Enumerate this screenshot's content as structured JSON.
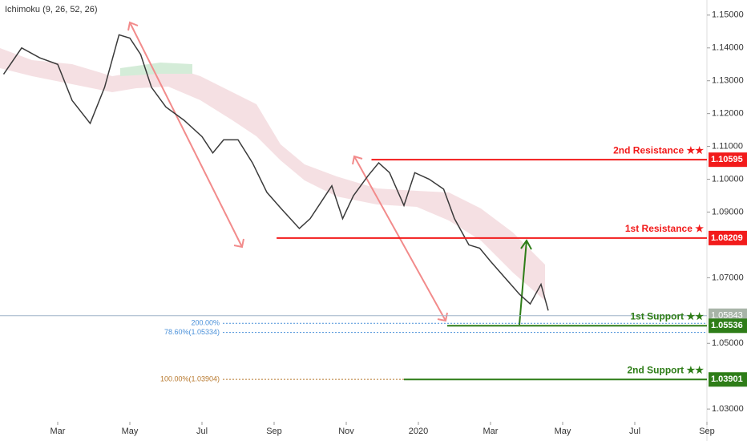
{
  "chart_data": {
    "type": "line",
    "indicator": "Ichimoku (9, 26, 52, 26)",
    "x": [
      0.5,
      1.0,
      1.5,
      2.0,
      2.4,
      2.9,
      3.3,
      3.7,
      4.0,
      4.3,
      4.6,
      5.0,
      5.5,
      6.0,
      6.3,
      6.6,
      7.0,
      7.4,
      7.8,
      8.2,
      8.7,
      9.0,
      9.3,
      9.6,
      9.9,
      10.2,
      10.6,
      10.9,
      11.2,
      11.6,
      11.9,
      12.3,
      12.7,
      13.0,
      13.4,
      13.7,
      14.0,
      14.4,
      14.8,
      15.1,
      15.4,
      15.6
    ],
    "series": [
      {
        "color": "#3a3a3a",
        "values": [
          1.132,
          1.14,
          1.137,
          1.135,
          1.124,
          1.117,
          1.128,
          1.144,
          1.143,
          1.138,
          1.128,
          1.122,
          1.118,
          1.113,
          1.108,
          1.112,
          1.112,
          1.105,
          1.096,
          1.091,
          1.085,
          1.088,
          1.093,
          1.098,
          1.088,
          1.095,
          1.101,
          1.105,
          1.102,
          1.092,
          1.102,
          1.1,
          1.097,
          1.088,
          1.08,
          1.079,
          1.075,
          1.07,
          1.065,
          1.062,
          1.068,
          1.06
        ]
      }
    ],
    "xlim": [
      0.4,
      20
    ],
    "xticks": [
      {
        "value": 2,
        "label": "Mar"
      },
      {
        "value": 4,
        "label": "May"
      },
      {
        "value": 6,
        "label": "Jul"
      },
      {
        "value": 8,
        "label": "Sep"
      },
      {
        "value": 10,
        "label": "Nov"
      },
      {
        "value": 12,
        "label": "2020"
      },
      {
        "value": 14,
        "label": "Mar"
      },
      {
        "value": 16,
        "label": "May"
      },
      {
        "value": 18,
        "label": "Jul"
      },
      {
        "value": 20,
        "label": "Sep"
      }
    ],
    "ylim": [
      1.0271,
      1.1546
    ],
    "yticks": [
      {
        "value": 1.15,
        "label": "1.15000"
      },
      {
        "value": 1.14,
        "label": "1.14000"
      },
      {
        "value": 1.13,
        "label": "1.13000"
      },
      {
        "value": 1.12,
        "label": "1.12000"
      },
      {
        "value": 1.11,
        "label": "1.11000"
      },
      {
        "value": 1.1,
        "label": "1.10000"
      },
      {
        "value": 1.09,
        "label": "1.09000"
      },
      {
        "value": 1.07,
        "label": "1.07000"
      },
      {
        "value": 1.05,
        "label": "1.05000"
      },
      {
        "value": 1.03,
        "label": "1.03000"
      }
    ],
    "levels": [
      {
        "name": "2nd Resistance ★★",
        "value": 1.10595,
        "from": 10.7,
        "color": "#f21b1b"
      },
      {
        "name": "1st Resistance ★",
        "value": 1.08209,
        "from": 8.07,
        "color": "#f21b1b"
      },
      {
        "name": "1st Support ★★",
        "value": 1.05536,
        "from": 12.8,
        "color": "#2e7d18"
      },
      {
        "name": "2nd Support ★★",
        "value": 1.03901,
        "from": 11.6,
        "color": "#2e7d18"
      }
    ],
    "current_price": 1.05843,
    "fib_levels": [
      {
        "label": "200.00%",
        "value": 1.0561,
        "color": "#4a90d9"
      },
      {
        "label": "78.60%(1.05334)",
        "value": 1.05334,
        "color": "#4a90d9"
      },
      {
        "label": "100.00%(1.03904)",
        "value": 1.03904,
        "color": "#b8792e"
      }
    ]
  }
}
